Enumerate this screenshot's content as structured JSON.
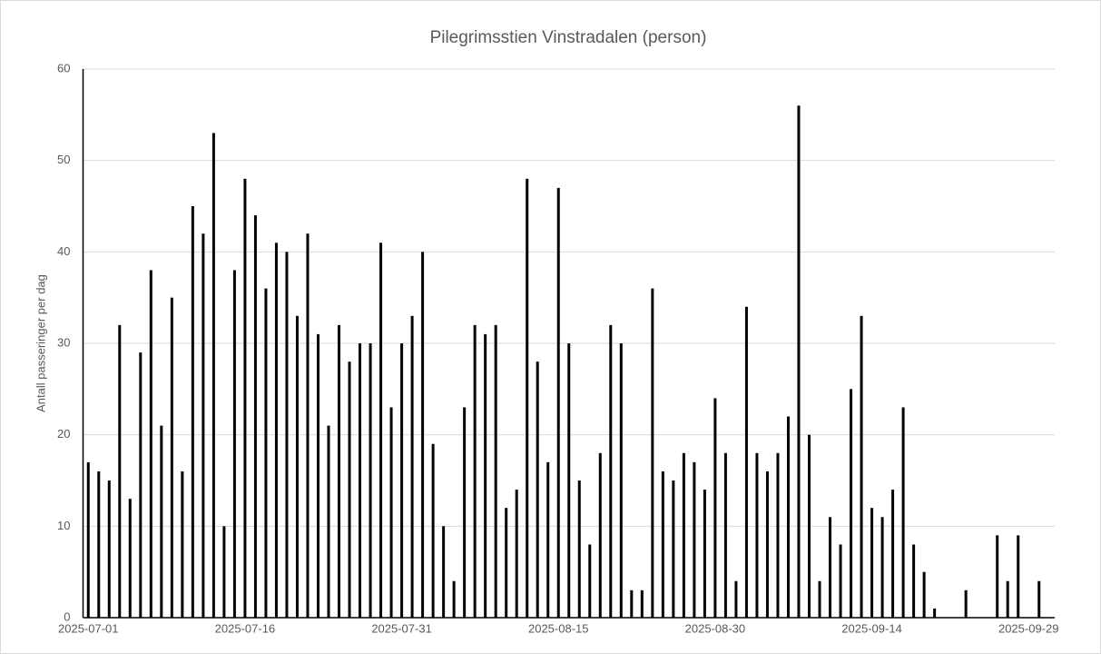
{
  "chart_data": {
    "type": "bar",
    "title": "Pilegrimsstien Vinstradalen (person)",
    "y_label": "Antall passeringer per dag",
    "categories": [
      "2025-07-01",
      null,
      null,
      null,
      null,
      null,
      null,
      null,
      null,
      null,
      null,
      null,
      null,
      null,
      null,
      "2025-07-16",
      null,
      null,
      null,
      null,
      null,
      null,
      null,
      null,
      null,
      null,
      null,
      null,
      null,
      null,
      "2025-07-31",
      null,
      null,
      null,
      null,
      null,
      null,
      null,
      null,
      null,
      null,
      null,
      null,
      null,
      null,
      "2025-08-15",
      null,
      null,
      null,
      null,
      null,
      null,
      null,
      null,
      null,
      null,
      null,
      null,
      null,
      null,
      "2025-08-30",
      null,
      null,
      null,
      null,
      null,
      null,
      null,
      null,
      null,
      null,
      null,
      null,
      null,
      null,
      "2025-09-14",
      null,
      null,
      null,
      null,
      null,
      null,
      null,
      null,
      null,
      null,
      null,
      null,
      null,
      null,
      "2025-09-29",
      null,
      null
    ],
    "values": [
      17,
      16,
      15,
      32,
      13,
      29,
      38,
      21,
      35,
      16,
      45,
      42,
      53,
      10,
      38,
      48,
      44,
      36,
      41,
      40,
      33,
      42,
      31,
      21,
      32,
      28,
      30,
      30,
      41,
      23,
      30,
      33,
      40,
      19,
      10,
      4,
      23,
      32,
      31,
      32,
      12,
      14,
      48,
      28,
      17,
      47,
      30,
      15,
      8,
      18,
      32,
      30,
      3,
      3,
      36,
      16,
      15,
      18,
      17,
      14,
      24,
      18,
      4,
      34,
      18,
      16,
      18,
      22,
      56,
      20,
      4,
      11,
      8,
      25,
      33,
      12,
      11,
      14,
      23,
      8,
      5,
      1,
      0,
      0,
      3,
      0,
      0,
      9,
      4,
      9,
      0,
      4,
      0
    ],
    "color": "#000000",
    "ylim": [
      0,
      60
    ],
    "yticks": [
      0,
      10,
      20,
      30,
      40,
      50,
      60
    ],
    "grid": true
  }
}
